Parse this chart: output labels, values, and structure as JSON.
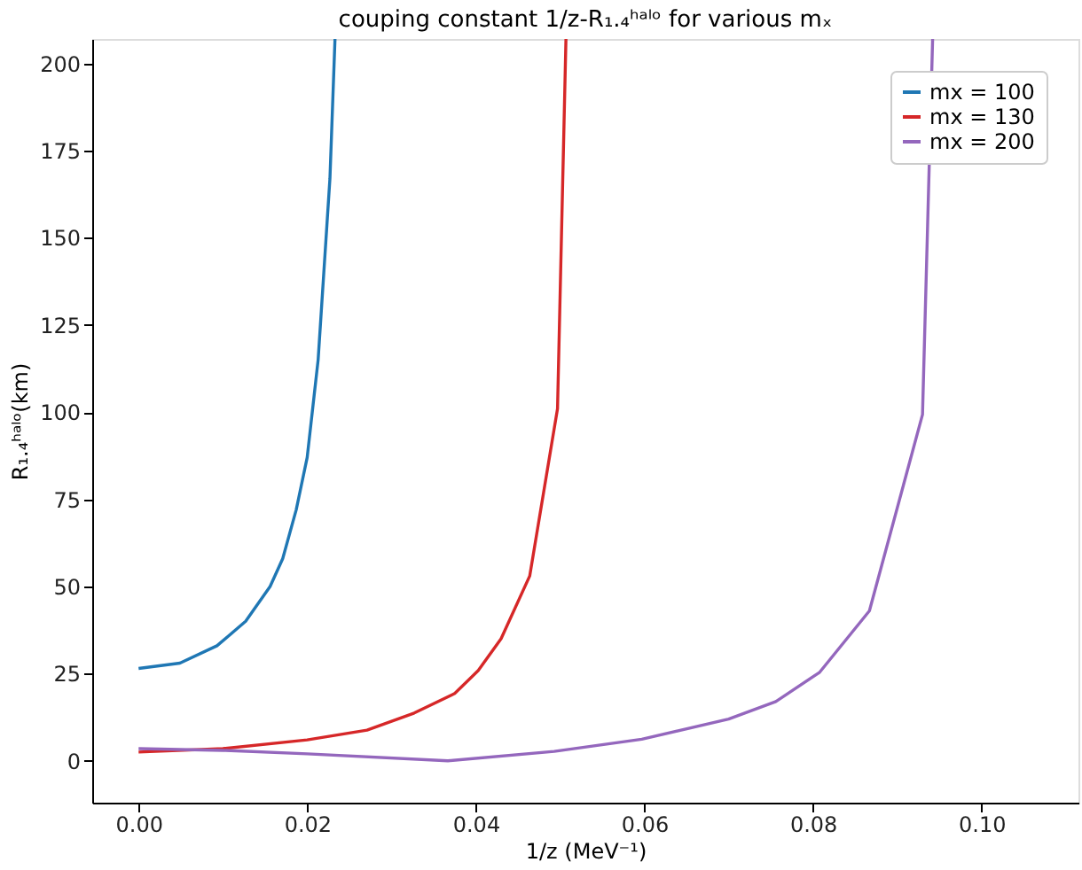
{
  "chart_data": {
    "type": "line",
    "title": "couping constant 1/z-R₁.₄ʰᵃˡᵒ for various mₓ",
    "xlabel": "1/z (MeV⁻¹)",
    "ylabel": "R₁.₄ʰᵃˡᵒ(km)",
    "series": [
      {
        "name": "mx = 100",
        "color": "#1f77b4",
        "x": [
          0,
          0.0049,
          0.0093,
          0.0127,
          0.0156,
          0.0171,
          0.0187,
          0.02,
          0.0213,
          0.0227,
          0.0233
        ],
        "values": [
          26.5,
          28,
          33,
          40,
          50,
          58,
          72,
          87,
          115,
          167,
          207
        ]
      },
      {
        "name": "mx = 130",
        "color": "#d62728",
        "x": [
          0,
          0.01,
          0.02,
          0.0271,
          0.0327,
          0.0375,
          0.0403,
          0.043,
          0.0464,
          0.0497,
          0.0507
        ],
        "values": [
          2.5,
          3.5,
          6,
          8.8,
          13.7,
          19.3,
          25.9,
          35,
          53,
          101,
          207
        ]
      },
      {
        "name": "mx = 200",
        "color": "#9467bd",
        "x": [
          0,
          0.01,
          0.02,
          0.0367,
          0.0493,
          0.0597,
          0.07,
          0.0756,
          0.0808,
          0.0867,
          0.093,
          0.0942
        ],
        "values": [
          3.5,
          3,
          2,
          0,
          2.7,
          6.2,
          12,
          17,
          25.4,
          43,
          99.3,
          207
        ]
      }
    ],
    "xlim": [
      -0.0055,
      0.1115
    ],
    "ylim": [
      -12,
      207
    ],
    "xticks": [
      {
        "value": 0,
        "label": "0.00"
      },
      {
        "value": 0.02,
        "label": "0.02"
      },
      {
        "value": 0.04,
        "label": "0.04"
      },
      {
        "value": 0.06,
        "label": "0.06"
      },
      {
        "value": 0.08,
        "label": "0.08"
      },
      {
        "value": 0.1,
        "label": "0.10"
      }
    ],
    "yticks": [
      0,
      25,
      50,
      75,
      100,
      125,
      150,
      175,
      200
    ],
    "legend": "top right",
    "grid": false,
    "line_style": "solid",
    "marker": "none"
  }
}
